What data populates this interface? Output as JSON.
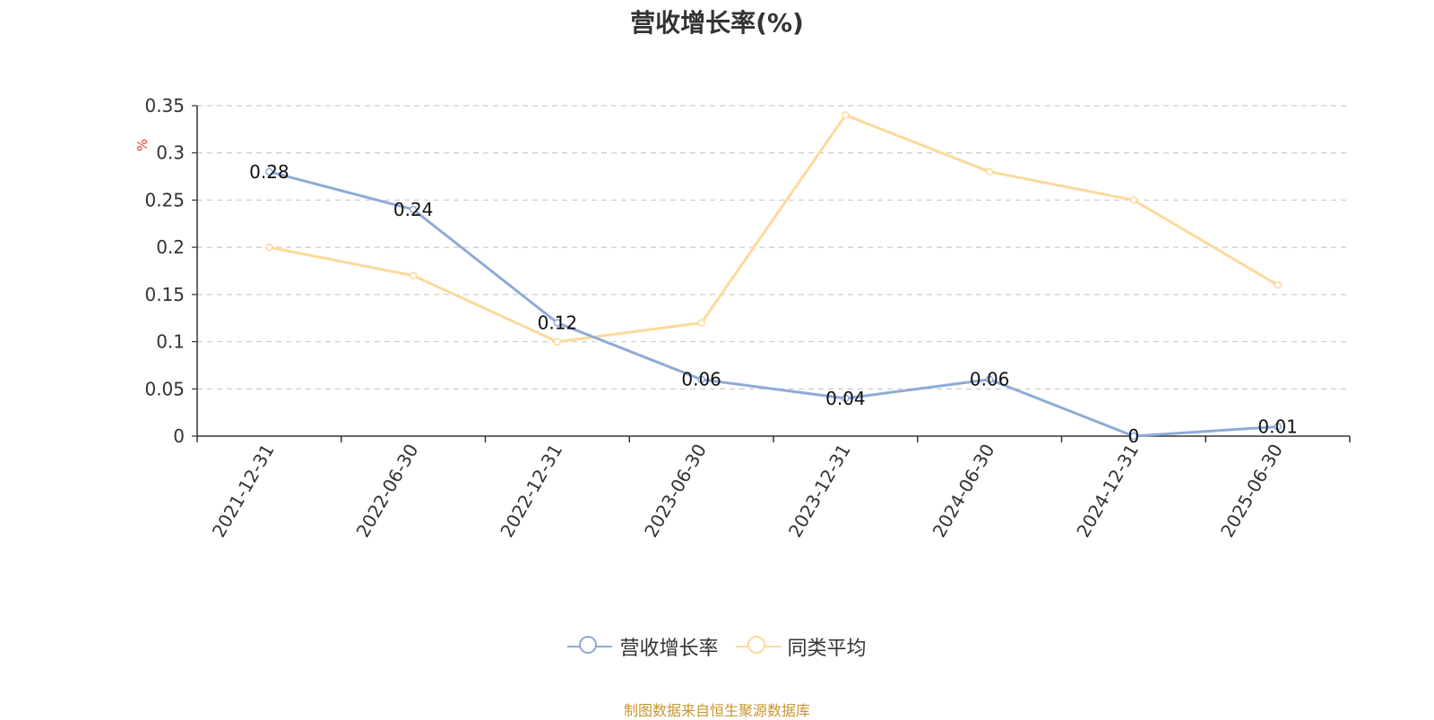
{
  "chart_data": {
    "type": "line",
    "title": "营收增长率(%)",
    "ylabel": "%",
    "xlabel": "",
    "categories": [
      "2021-12-31",
      "2022-06-30",
      "2022-12-31",
      "2023-06-30",
      "2023-12-31",
      "2024-06-30",
      "2024-12-31",
      "2025-06-30"
    ],
    "ylim": [
      0,
      0.35
    ],
    "yticks": [
      0,
      0.05,
      0.1,
      0.15,
      0.2,
      0.25,
      0.3,
      0.35
    ],
    "ytick_labels": [
      "0",
      "0.05",
      "0.1",
      "0.15",
      "0.2",
      "0.25",
      "0.3",
      "0.35"
    ],
    "grid": true,
    "legend_position": "bottom",
    "series": [
      {
        "name": "营收增长率",
        "color": "#8eabd6",
        "values": [
          0.28,
          0.24,
          0.12,
          0.06,
          0.04,
          0.06,
          0,
          0.01
        ],
        "data_labels": [
          "0.28",
          "0.24",
          "0.12",
          "0.06",
          "0.04",
          "0.06",
          "0",
          "0.01"
        ]
      },
      {
        "name": "同类平均",
        "color": "#fdd99b",
        "values": [
          0.2,
          0.17,
          0.1,
          0.12,
          0.34,
          0.28,
          0.25,
          0.16
        ]
      }
    ]
  },
  "source": {
    "text": "制图数据来自恒生聚源数据库",
    "color": "#c8962d"
  },
  "ylabel_color": "#e8392e"
}
